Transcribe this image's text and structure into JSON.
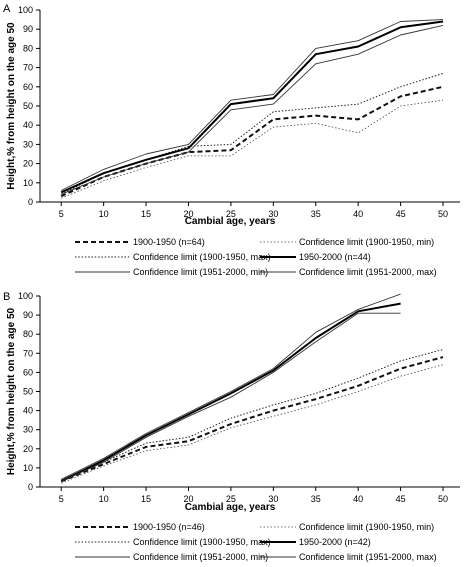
{
  "chart_data": [
    {
      "panel": "A",
      "type": "line",
      "xlabel": "Cambial age, years",
      "ylabel": "Height,% from height on the age 50",
      "x": [
        5,
        10,
        15,
        20,
        25,
        30,
        35,
        40,
        45,
        50
      ],
      "xlim": [
        2.5,
        52
      ],
      "ylim": [
        0,
        100
      ],
      "yticks": [
        0,
        10,
        20,
        30,
        40,
        50,
        60,
        70,
        80,
        90,
        100
      ],
      "grid": false,
      "legend_position": "below",
      "series": [
        {
          "name": "1900-1950 (n=64)",
          "style": "dash-bold",
          "values": [
            3,
            13,
            20,
            26,
            27,
            43,
            45,
            43,
            55,
            60
          ]
        },
        {
          "name": "Confidence limit (1900-1950, min)",
          "style": "dot-thin",
          "values": [
            2,
            11,
            18,
            24,
            24,
            39,
            41,
            36,
            50,
            53
          ]
        },
        {
          "name": "Confidence limit (1900-1950, max)",
          "style": "dot",
          "values": [
            4,
            15,
            22,
            29,
            30,
            47,
            49,
            51,
            60,
            67
          ]
        },
        {
          "name": "1950-2000 (n=44)",
          "style": "solid-bold",
          "values": [
            5,
            15,
            22,
            28,
            51,
            54,
            77,
            81,
            91,
            94
          ]
        },
        {
          "name": "Confidence limit (1951-2000, min)",
          "style": "solid-thin",
          "values": [
            4,
            13,
            20,
            26,
            48,
            51,
            72,
            77,
            87,
            92
          ]
        },
        {
          "name": "Confidence limit (1951-2000, max)",
          "style": "solid-thin",
          "values": [
            6,
            17,
            25,
            30,
            53,
            56,
            80,
            84,
            94,
            95
          ]
        }
      ]
    },
    {
      "panel": "B",
      "type": "line",
      "xlabel": "Cambial age, years",
      "ylabel": "Height,% from height on the age 50",
      "x": [
        5,
        10,
        15,
        20,
        25,
        30,
        35,
        40,
        45,
        50
      ],
      "xlim": [
        2.5,
        52
      ],
      "ylim": [
        0,
        100
      ],
      "yticks": [
        0,
        10,
        20,
        30,
        40,
        50,
        60,
        70,
        80,
        90,
        100
      ],
      "grid": false,
      "legend_position": "below",
      "series": [
        {
          "name": "1900-1950 (n=46)",
          "style": "dash-bold",
          "values": [
            3,
            12,
            21,
            24,
            33,
            40,
            46,
            53,
            62,
            68
          ]
        },
        {
          "name": "Confidence limit (1900-1950, min)",
          "style": "dot-thin",
          "values": [
            2,
            11,
            19,
            22,
            31,
            37,
            43,
            50,
            58,
            64
          ]
        },
        {
          "name": "Confidence limit (1900-1950, max)",
          "style": "dot",
          "values": [
            4,
            13,
            23,
            26,
            36,
            43,
            49,
            57,
            66,
            72
          ]
        },
        {
          "name": "1950-2000 (n=42)",
          "style": "solid-bold",
          "values": [
            3,
            14,
            27,
            38,
            49,
            61,
            78,
            92,
            96,
            null
          ]
        },
        {
          "name": "Confidence limit (1951-2000, min)",
          "style": "solid-thin",
          "values": [
            3,
            13,
            26,
            37,
            47,
            60,
            76,
            91,
            91,
            null
          ]
        },
        {
          "name": "Confidence limit (1951-2000, max)",
          "style": "solid-thin",
          "values": [
            4,
            15,
            28,
            39,
            50,
            62,
            81,
            93,
            101,
            null
          ]
        }
      ]
    }
  ]
}
